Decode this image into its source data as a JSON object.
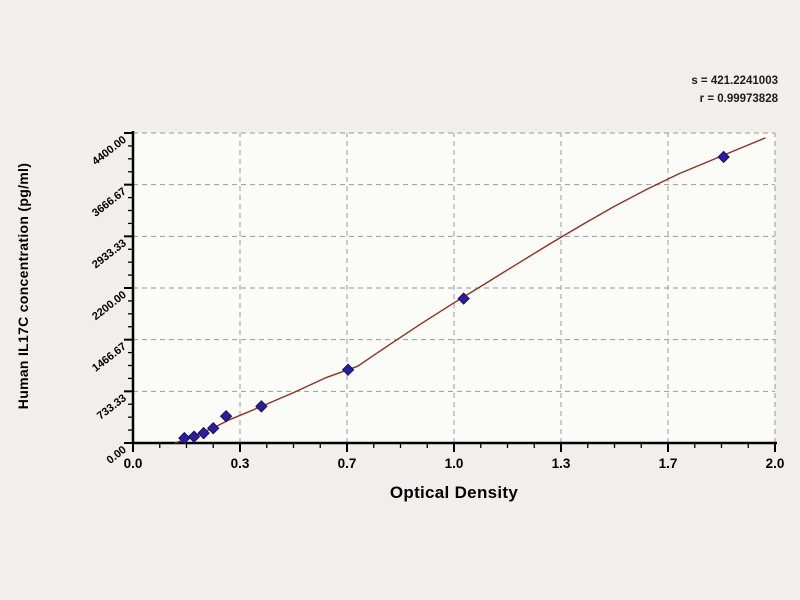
{
  "chart_data": {
    "type": "scatter",
    "title": "",
    "xlabel": "Optical Density",
    "ylabel": "Human IL17C concentration (pg/ml)",
    "xlim": [
      0,
      2.0
    ],
    "ylim": [
      0,
      4400
    ],
    "x_ticks": [
      0,
      0.3333,
      0.6667,
      1.0,
      1.3333,
      1.6667,
      2.0
    ],
    "x_tick_labels": [
      "0.0",
      "0.3",
      "0.7",
      "1.0",
      "1.3",
      "1.7",
      "2.0"
    ],
    "y_ticks": [
      0,
      733.33,
      1466.67,
      2200.0,
      2933.33,
      3666.67,
      4400.0
    ],
    "y_tick_labels": [
      "0.00",
      "733.33",
      "1466.67",
      "2200.00",
      "2933.33",
      "3666.67",
      "4400.00"
    ],
    "minor_ticks_per_interval": 3,
    "grid": "dashed",
    "legend": "none",
    "annotation": {
      "line1": "s = 421.2241003",
      "line2": "r = 0.99973828"
    },
    "series": [
      {
        "name": "standards",
        "marker": "diamond",
        "points": [
          {
            "od": 0.16,
            "conc": 70
          },
          {
            "od": 0.19,
            "conc": 90
          },
          {
            "od": 0.22,
            "conc": 140
          },
          {
            "od": 0.25,
            "conc": 210
          },
          {
            "od": 0.29,
            "conc": 380
          },
          {
            "od": 0.4,
            "conc": 520
          },
          {
            "od": 0.67,
            "conc": 1040
          },
          {
            "od": 1.03,
            "conc": 2050
          },
          {
            "od": 1.84,
            "conc": 4060
          }
        ]
      }
    ],
    "fit_curve": [
      [
        0.13,
        0
      ],
      [
        0.16,
        45
      ],
      [
        0.2,
        115
      ],
      [
        0.25,
        215
      ],
      [
        0.3,
        330
      ],
      [
        0.4,
        520
      ],
      [
        0.5,
        715
      ],
      [
        0.6,
        925
      ],
      [
        0.7,
        1090
      ],
      [
        0.8,
        1400
      ],
      [
        0.9,
        1700
      ],
      [
        1.0,
        1990
      ],
      [
        1.1,
        2270
      ],
      [
        1.2,
        2550
      ],
      [
        1.3,
        2830
      ],
      [
        1.4,
        3100
      ],
      [
        1.5,
        3360
      ],
      [
        1.6,
        3600
      ],
      [
        1.7,
        3820
      ],
      [
        1.8,
        4010
      ],
      [
        1.9,
        4200
      ],
      [
        1.97,
        4330
      ]
    ],
    "colors": {
      "curve": "#8a3226",
      "point": "#2d1e9e",
      "point_stroke": "#17105f",
      "grid": "#9a9a9a",
      "axis": "#000000",
      "background": "#f0efec",
      "plot_background": "#fbfbf8",
      "text": "#000000"
    }
  }
}
